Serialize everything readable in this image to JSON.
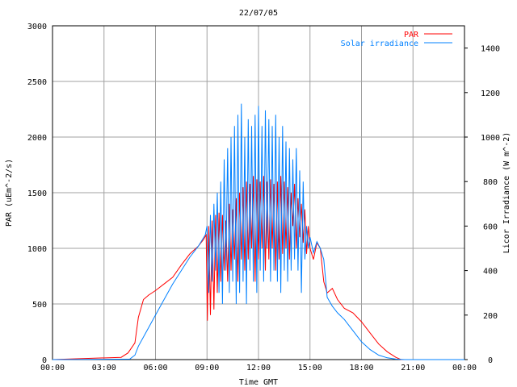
{
  "chart_data": {
    "type": "line",
    "title": "22/07/05",
    "xlabel": "Time GMT",
    "ylabel": "PAR (uEm^-2/s)",
    "y2label": "Licor Irradiance (W m^-2)",
    "xlim": [
      0,
      24
    ],
    "ylim": [
      0,
      3000
    ],
    "y2lim": [
      0,
      1500
    ],
    "x_ticks": [
      0,
      3,
      6,
      9,
      12,
      15,
      18,
      21,
      24
    ],
    "x_tick_labels": [
      "00:00",
      "03:00",
      "06:00",
      "09:00",
      "12:00",
      "15:00",
      "18:00",
      "21:00",
      "00:00"
    ],
    "y_ticks": [
      0,
      500,
      1000,
      1500,
      2000,
      2500,
      3000
    ],
    "y2_ticks": [
      0,
      200,
      400,
      600,
      800,
      1000,
      1200,
      1400
    ],
    "grid": true,
    "legend_position": "top-right",
    "series": [
      {
        "name": "PAR",
        "color": "#ff0000",
        "axis": "left",
        "x": [
          0,
          4.0,
          4.4,
          4.8,
          5.0,
          5.3,
          5.6,
          6.0,
          6.5,
          7.0,
          7.5,
          8.0,
          8.5,
          8.8,
          8.95,
          9.02,
          9.1,
          9.2,
          9.3,
          9.4,
          9.5,
          9.6,
          9.7,
          9.8,
          9.9,
          10.0,
          10.1,
          10.2,
          10.3,
          10.4,
          10.5,
          10.6,
          10.7,
          10.8,
          10.9,
          11.0,
          11.1,
          11.2,
          11.3,
          11.4,
          11.5,
          11.6,
          11.7,
          11.8,
          11.9,
          12.0,
          12.1,
          12.2,
          12.3,
          12.4,
          12.5,
          12.6,
          12.7,
          12.8,
          12.9,
          13.0,
          13.1,
          13.2,
          13.3,
          13.4,
          13.5,
          13.6,
          13.7,
          13.8,
          13.9,
          14.0,
          14.1,
          14.2,
          14.3,
          14.4,
          14.5,
          14.6,
          14.7,
          14.8,
          14.9,
          15.0,
          15.2,
          15.4,
          15.6,
          15.8,
          16.0,
          16.3,
          16.6,
          17.0,
          17.5,
          18.0,
          18.5,
          19.0,
          19.5,
          20.0,
          20.3,
          21.0,
          24.0
        ],
        "values": [
          0,
          20,
          60,
          150,
          380,
          540,
          580,
          620,
          680,
          740,
          850,
          950,
          1020,
          1080,
          1120,
          350,
          1200,
          400,
          1250,
          450,
          1300,
          600,
          1320,
          700,
          1300,
          800,
          1250,
          700,
          1400,
          800,
          1350,
          900,
          1450,
          700,
          1500,
          900,
          1550,
          800,
          1600,
          900,
          1580,
          1000,
          1650,
          700,
          1620,
          900,
          1600,
          1000,
          1650,
          800,
          1600,
          900,
          1620,
          1000,
          1580,
          800,
          1600,
          900,
          1650,
          950,
          1600,
          1000,
          1550,
          900,
          1500,
          1200,
          1580,
          1000,
          1450,
          1100,
          1400,
          1050,
          1350,
          950,
          1200,
          1000,
          900,
          1050,
          1000,
          700,
          600,
          640,
          540,
          460,
          420,
          340,
          240,
          140,
          70,
          20,
          0,
          0,
          0
        ]
      },
      {
        "name": "Solar irradiance",
        "color": "#0080ff",
        "axis": "right",
        "x": [
          0,
          4.5,
          4.8,
          5.0,
          5.5,
          6.0,
          6.5,
          7.0,
          7.5,
          8.0,
          8.5,
          8.9,
          9.0,
          9.1,
          9.2,
          9.3,
          9.4,
          9.5,
          9.6,
          9.7,
          9.8,
          9.9,
          10.0,
          10.1,
          10.2,
          10.3,
          10.4,
          10.5,
          10.6,
          10.7,
          10.8,
          10.9,
          11.0,
          11.1,
          11.2,
          11.3,
          11.4,
          11.5,
          11.6,
          11.7,
          11.8,
          11.9,
          12.0,
          12.1,
          12.2,
          12.3,
          12.4,
          12.5,
          12.6,
          12.7,
          12.8,
          12.9,
          13.0,
          13.1,
          13.2,
          13.3,
          13.4,
          13.5,
          13.6,
          13.7,
          13.8,
          13.9,
          14.0,
          14.1,
          14.2,
          14.3,
          14.4,
          14.5,
          14.6,
          14.7,
          14.8,
          14.9,
          15.0,
          15.2,
          15.4,
          15.6,
          15.8,
          16.0,
          16.3,
          16.6,
          17.0,
          17.5,
          18.0,
          18.5,
          19.0,
          19.5,
          20.0,
          20.5,
          21.0,
          24.0
        ],
        "values": [
          0,
          2,
          20,
          60,
          130,
          200,
          270,
          340,
          400,
          460,
          510,
          560,
          600,
          300,
          650,
          350,
          700,
          400,
          750,
          300,
          800,
          250,
          900,
          400,
          950,
          300,
          1000,
          350,
          1050,
          250,
          1100,
          300,
          1150,
          350,
          1000,
          250,
          1080,
          400,
          1050,
          350,
          1100,
          300,
          1140,
          400,
          1050,
          350,
          1120,
          500,
          1080,
          350,
          1050,
          400,
          1100,
          350,
          1000,
          300,
          1050,
          400,
          980,
          350,
          950,
          400,
          900,
          450,
          950,
          400,
          850,
          300,
          800,
          450,
          600,
          500,
          550,
          480,
          530,
          500,
          450,
          280,
          240,
          210,
          180,
          130,
          80,
          45,
          20,
          8,
          2,
          0,
          0,
          0
        ]
      }
    ]
  }
}
